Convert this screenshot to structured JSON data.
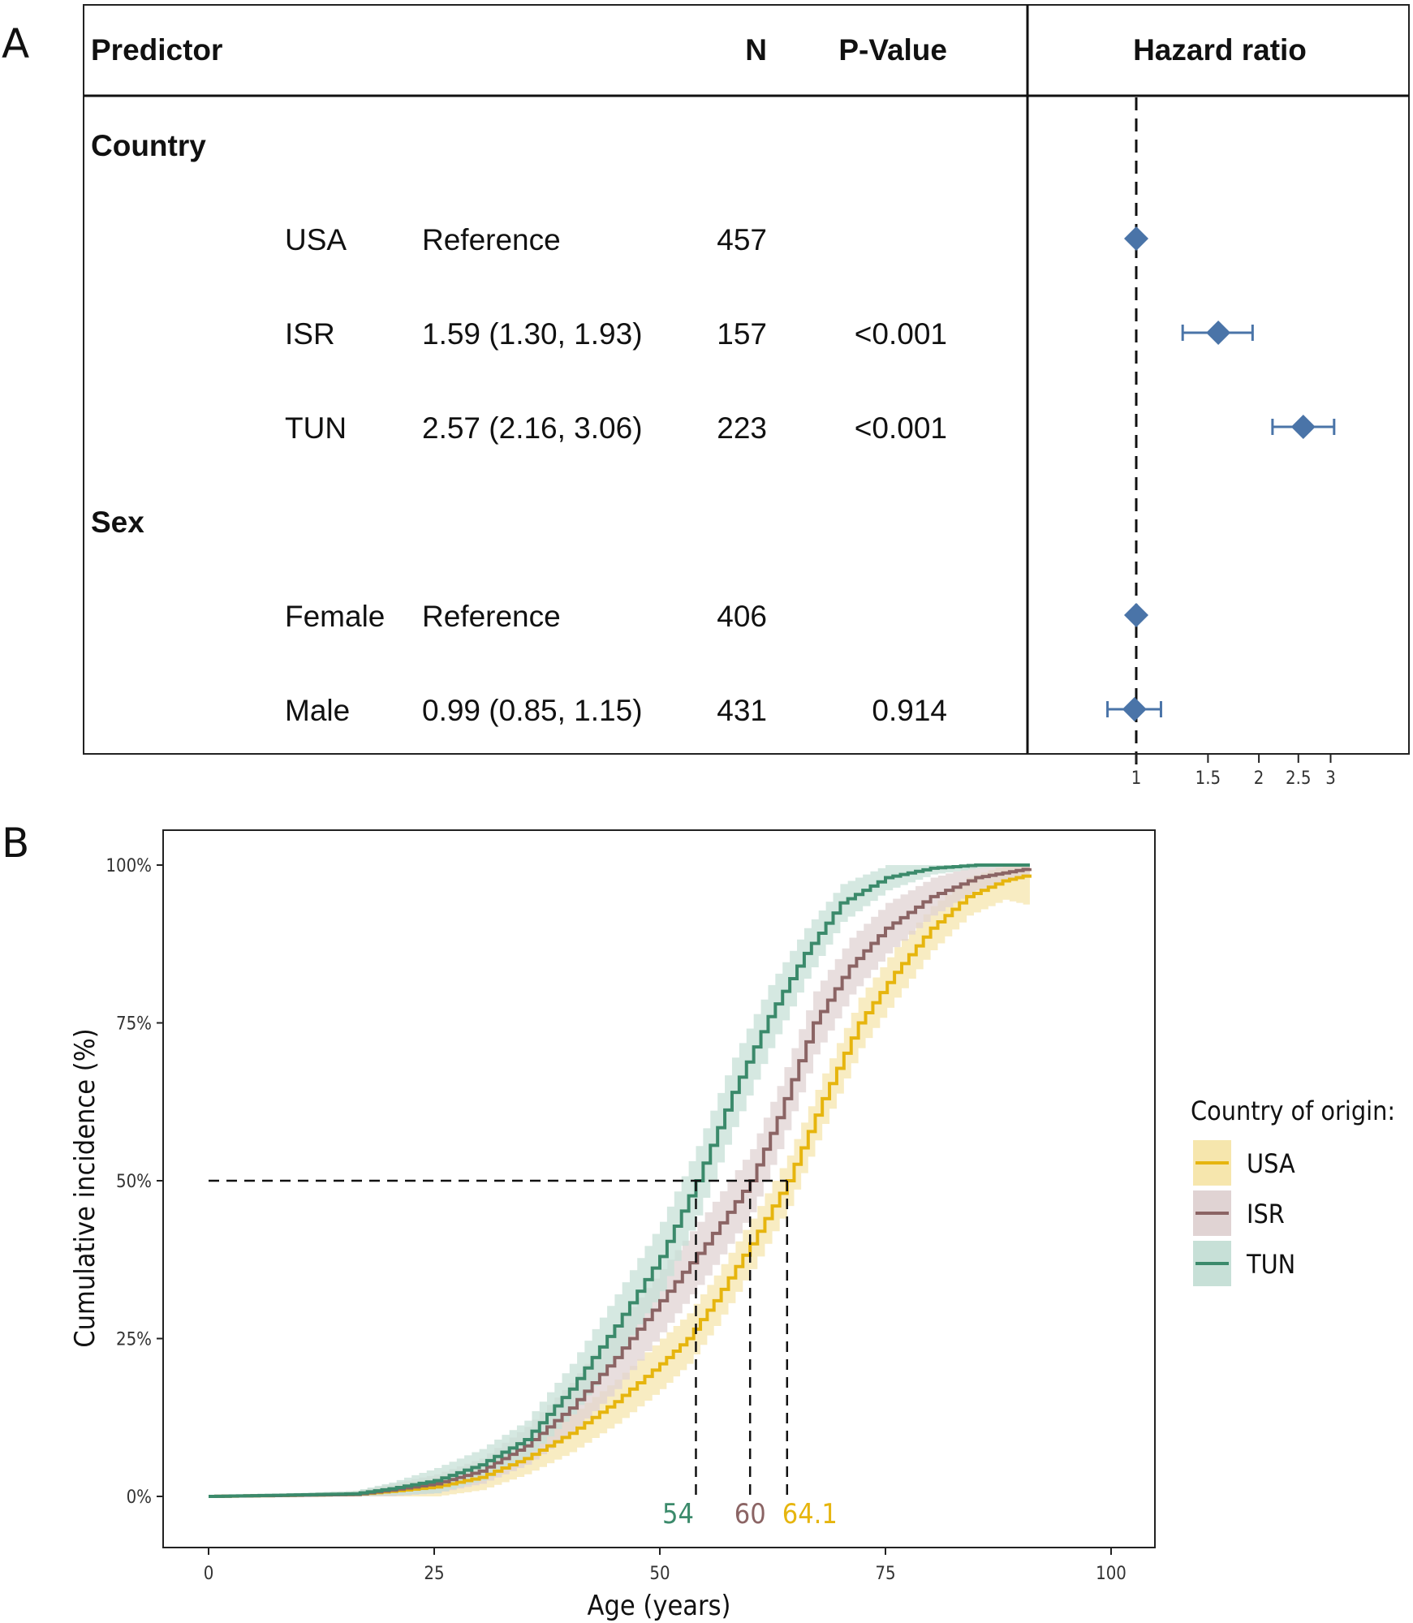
{
  "panel_a": {
    "label": "A",
    "headers": {
      "predictor": "Predictor",
      "n": "N",
      "pvalue": "P-Value",
      "hr": "Hazard ratio"
    },
    "groups": [
      {
        "name": "Country",
        "rows": [
          {
            "level": "USA",
            "estimate": "Reference",
            "n": "457",
            "p": "",
            "hr": 1.0,
            "lo": null,
            "hi": null
          },
          {
            "level": "ISR",
            "estimate": "1.59 (1.30, 1.93)",
            "n": "157",
            "p": "<0.001",
            "hr": 1.59,
            "lo": 1.3,
            "hi": 1.93
          },
          {
            "level": "TUN",
            "estimate": "2.57 (2.16, 3.06)",
            "n": "223",
            "p": "<0.001",
            "hr": 2.57,
            "lo": 2.16,
            "hi": 3.06
          }
        ]
      },
      {
        "name": "Sex",
        "rows": [
          {
            "level": "Female",
            "estimate": "Reference",
            "n": "406",
            "p": "",
            "hr": 1.0,
            "lo": null,
            "hi": null
          },
          {
            "level": "Male",
            "estimate": "0.99 (0.85, 1.15)",
            "n": "431",
            "p": "0.914",
            "hr": 0.99,
            "lo": 0.85,
            "hi": 1.15
          }
        ]
      }
    ],
    "hr_ticks": [
      "1",
      "1.5",
      "2",
      "2.5",
      "3"
    ],
    "hr_scale": "log",
    "reference_line": 1,
    "marker_color": "#4a74a8"
  },
  "chart_data": {
    "type": "line",
    "panel_label": "B",
    "title": "",
    "xlabel": "Age (years)",
    "ylabel": "Cumulative incidence (%)",
    "xlim": [
      -5,
      105
    ],
    "ylim": [
      -8,
      105
    ],
    "x_ticks": [
      "0",
      "25",
      "50",
      "75",
      "100"
    ],
    "x_tick_values": [
      0,
      25,
      50,
      75,
      100
    ],
    "y_ticks": [
      "0%",
      "25%",
      "50%",
      "75%",
      "100%"
    ],
    "y_tick_values": [
      0,
      25,
      50,
      75,
      100
    ],
    "grid": false,
    "legend_title": "Country of origin:",
    "legend_position": "right",
    "median_line_y": 50,
    "series": [
      {
        "name": "USA",
        "color": "#e6b50e",
        "band": "#f6e6ad",
        "median": 64.1,
        "median_label": "64.1",
        "x": [
          0,
          16,
          20,
          25,
          30,
          35,
          40,
          45,
          50,
          53,
          56,
          60,
          64.1,
          68,
          72,
          76,
          80,
          84,
          88,
          91
        ],
        "y": [
          0,
          0.3,
          0.8,
          1.5,
          3,
          6,
          10,
          15,
          21,
          25,
          31,
          40,
          50,
          63,
          75,
          83,
          90,
          95,
          97.5,
          98.5
        ],
        "ci": [
          0,
          0.5,
          1,
          1.5,
          2,
          2.5,
          3,
          3.5,
          4,
          4,
          4,
          4,
          4,
          4,
          4,
          4,
          3.5,
          3,
          3,
          5
        ]
      },
      {
        "name": "ISR",
        "color": "#8b6464",
        "band": "#e0d3d3",
        "median": 60.0,
        "median_label": "60",
        "x": [
          0,
          16,
          20,
          25,
          30,
          35,
          40,
          45,
          50,
          55,
          60,
          63,
          67,
          71,
          75,
          80,
          85,
          91
        ],
        "y": [
          0,
          0.3,
          1,
          2,
          4,
          8,
          14,
          22,
          31,
          40,
          50,
          60,
          75,
          84,
          90,
          95,
          98,
          99.5
        ],
        "ci": [
          0,
          0.5,
          1,
          1.5,
          2,
          3,
          4,
          5,
          5,
          5,
          5,
          5,
          5,
          4.5,
          4,
          3,
          2,
          1
        ]
      },
      {
        "name": "TUN",
        "color": "#3b8a6b",
        "band": "#c7e0d7",
        "median": 54.0,
        "median_label": "54",
        "x": [
          0,
          16,
          20,
          25,
          30,
          35,
          40,
          45,
          50,
          54,
          58,
          62,
          66,
          70,
          75,
          80,
          85,
          91
        ],
        "y": [
          0,
          0.4,
          1.2,
          2.5,
          5,
          9,
          17,
          27,
          38,
          50,
          64,
          76,
          86,
          94,
          98,
          99.5,
          100,
          100
        ],
        "ci": [
          0,
          0.5,
          1,
          2,
          2.5,
          3,
          4,
          5,
          5.5,
          5.5,
          5.5,
          5,
          4,
          3,
          2,
          1,
          0.5,
          0
        ]
      }
    ]
  }
}
